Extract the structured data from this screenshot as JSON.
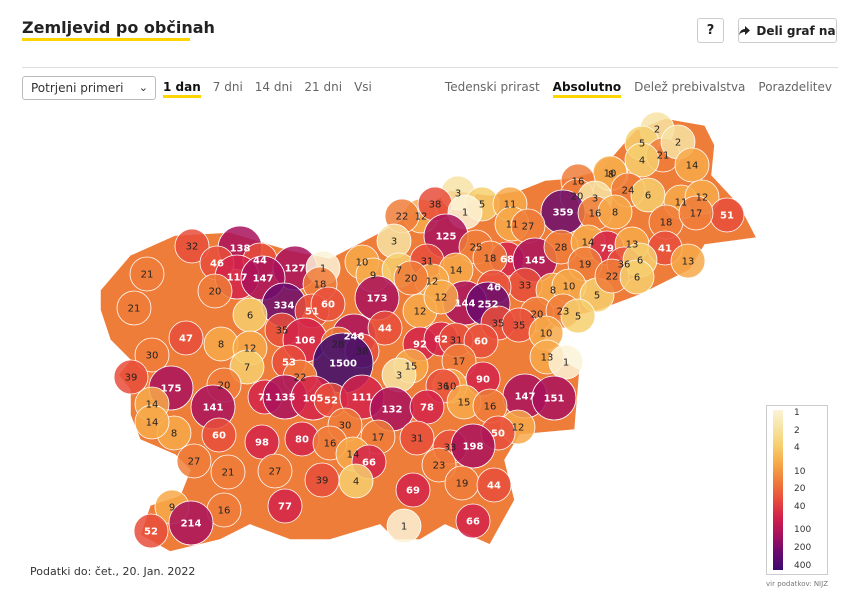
{
  "header": {
    "title": "Zemljevid po občinah",
    "help_label": "?",
    "share_label": "Deli graf na"
  },
  "filters": {
    "select_value": "Potrjeni primeri",
    "periods": [
      "1 dan",
      "7 dni",
      "14 dni",
      "21 dni",
      "Vsi"
    ],
    "active_period": "1 dan",
    "modes": [
      "Tedenski prirast",
      "Absolutno",
      "Delež prebivalstva",
      "Porazdelitev"
    ],
    "active_mode": "Absolutno"
  },
  "colors": {
    "accent": "#ffd500",
    "scale": [
      "#fbf3d8",
      "#f7e3a4",
      "#f6cf6e",
      "#f7a94a",
      "#ef7d3a",
      "#e84e3b",
      "#d2224a",
      "#a8115c",
      "#6a0a6e",
      "#3b0a6e"
    ]
  },
  "legend": {
    "ticks": [
      "1",
      "2",
      "4",
      "10",
      "20",
      "40",
      "100",
      "200",
      "400"
    ]
  },
  "map_labels": [
    {
      "v": "2"
    },
    {
      "v": "5"
    },
    {
      "v": "21"
    },
    {
      "v": "2"
    },
    {
      "v": "4"
    },
    {
      "v": "14"
    },
    {
      "v": "8"
    },
    {
      "v": "10"
    },
    {
      "v": "16"
    },
    {
      "v": "20"
    },
    {
      "v": "3"
    },
    {
      "v": "24"
    },
    {
      "v": "6"
    },
    {
      "v": "11"
    },
    {
      "v": "12"
    },
    {
      "v": "51"
    },
    {
      "v": "359"
    },
    {
      "v": "3"
    },
    {
      "v": "5"
    },
    {
      "v": "11"
    },
    {
      "v": "12"
    },
    {
      "v": "22"
    },
    {
      "v": "38"
    },
    {
      "v": "1"
    },
    {
      "v": "11"
    },
    {
      "v": "27"
    },
    {
      "v": "16"
    },
    {
      "v": "8"
    },
    {
      "v": "18"
    },
    {
      "v": "17"
    },
    {
      "v": "125"
    },
    {
      "v": "3"
    },
    {
      "v": "25"
    },
    {
      "v": "68"
    },
    {
      "v": "145"
    },
    {
      "v": "28"
    },
    {
      "v": "14"
    },
    {
      "v": "79"
    },
    {
      "v": "13"
    },
    {
      "v": "41"
    },
    {
      "v": "32"
    },
    {
      "v": "138"
    },
    {
      "v": "44"
    },
    {
      "v": "127"
    },
    {
      "v": "1"
    },
    {
      "v": "10"
    },
    {
      "v": "9"
    },
    {
      "v": "7"
    },
    {
      "v": "31"
    },
    {
      "v": "14"
    },
    {
      "v": "18"
    },
    {
      "v": "19"
    },
    {
      "v": "36"
    },
    {
      "v": "6"
    },
    {
      "v": "13"
    },
    {
      "v": "21"
    },
    {
      "v": "46"
    },
    {
      "v": "117"
    },
    {
      "v": "147"
    },
    {
      "v": "33"
    },
    {
      "v": "8"
    },
    {
      "v": "10"
    },
    {
      "v": "5"
    },
    {
      "v": "22"
    },
    {
      "v": "6"
    },
    {
      "v": "20"
    },
    {
      "v": "18"
    },
    {
      "v": "173"
    },
    {
      "v": "12"
    },
    {
      "v": "20"
    },
    {
      "v": "46"
    },
    {
      "v": "144"
    },
    {
      "v": "252"
    },
    {
      "v": "21"
    },
    {
      "v": "334"
    },
    {
      "v": "51"
    },
    {
      "v": "12"
    },
    {
      "v": "6"
    },
    {
      "v": "60"
    },
    {
      "v": "12"
    },
    {
      "v": "20"
    },
    {
      "v": "23"
    },
    {
      "v": "5"
    },
    {
      "v": "47"
    },
    {
      "v": "35"
    },
    {
      "v": "246"
    },
    {
      "v": "44"
    },
    {
      "v": "35"
    },
    {
      "v": "35"
    },
    {
      "v": "8"
    },
    {
      "v": "12"
    },
    {
      "v": "106"
    },
    {
      "v": "28"
    },
    {
      "v": "92"
    },
    {
      "v": "62"
    },
    {
      "v": "31"
    },
    {
      "v": "60"
    },
    {
      "v": "10"
    },
    {
      "v": "30"
    },
    {
      "v": "53"
    },
    {
      "v": "38"
    },
    {
      "v": "13"
    },
    {
      "v": "7"
    },
    {
      "v": "1500"
    },
    {
      "v": "17"
    },
    {
      "v": "1"
    },
    {
      "v": "15"
    },
    {
      "v": "39"
    },
    {
      "v": "175"
    },
    {
      "v": "22"
    },
    {
      "v": "3"
    },
    {
      "v": "90"
    },
    {
      "v": "20"
    },
    {
      "v": "10"
    },
    {
      "v": "36"
    },
    {
      "v": "71"
    },
    {
      "v": "135"
    },
    {
      "v": "105"
    },
    {
      "v": "52"
    },
    {
      "v": "111"
    },
    {
      "v": "132"
    },
    {
      "v": "78"
    },
    {
      "v": "15"
    },
    {
      "v": "147"
    },
    {
      "v": "151"
    },
    {
      "v": "141"
    },
    {
      "v": "14"
    },
    {
      "v": "16"
    },
    {
      "v": "8"
    },
    {
      "v": "30"
    },
    {
      "v": "14"
    },
    {
      "v": "12"
    },
    {
      "v": "60"
    },
    {
      "v": "98"
    },
    {
      "v": "80"
    },
    {
      "v": "17"
    },
    {
      "v": "31"
    },
    {
      "v": "50"
    },
    {
      "v": "33"
    },
    {
      "v": "198"
    },
    {
      "v": "16"
    },
    {
      "v": "14"
    },
    {
      "v": "66"
    },
    {
      "v": "27"
    },
    {
      "v": "23"
    },
    {
      "v": "21"
    },
    {
      "v": "27"
    },
    {
      "v": "39"
    },
    {
      "v": "4"
    },
    {
      "v": "19"
    },
    {
      "v": "69"
    },
    {
      "v": "44"
    },
    {
      "v": "77"
    },
    {
      "v": "16"
    },
    {
      "v": "9"
    },
    {
      "v": "214"
    },
    {
      "v": "66"
    },
    {
      "v": "52"
    },
    {
      "v": "1"
    }
  ],
  "footer": {
    "updated": "Podatki do: čet., 20. Jan. 2022",
    "source": "vir podatkov: NIJZ"
  }
}
